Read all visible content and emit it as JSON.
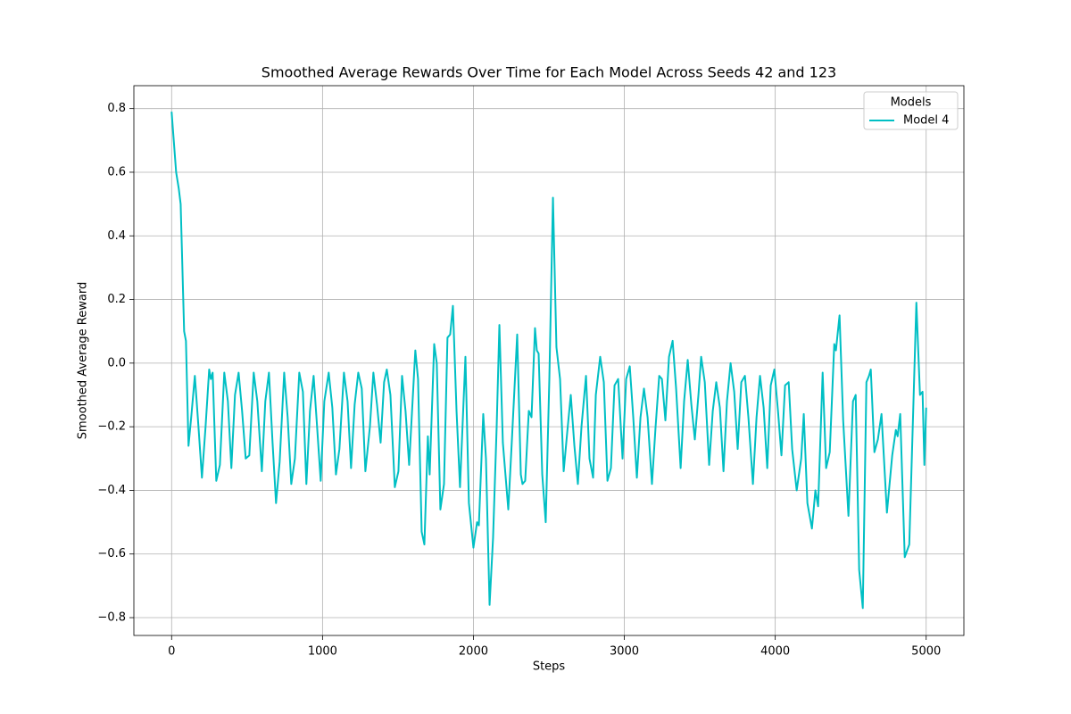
{
  "chart_data": {
    "type": "line",
    "title": "Smoothed Average Rewards Over Time for Each Model Across Seeds 42 and 123",
    "x_label": "Steps",
    "y_label": "Smoothed Average Reward",
    "legend_title": "Models",
    "legend_position": "upper right",
    "grid": true,
    "xlim": [
      -250,
      5250
    ],
    "ylim": [
      -0.856,
      0.872
    ],
    "xticks": [
      0,
      1000,
      2000,
      3000,
      4000,
      5000
    ],
    "yticks": [
      {
        "value": -0.8,
        "label": "−0.8"
      },
      {
        "value": -0.6,
        "label": "−0.6"
      },
      {
        "value": -0.4,
        "label": "−0.4"
      },
      {
        "value": -0.2,
        "label": "−0.2"
      },
      {
        "value": 0,
        "label": "0.0"
      },
      0.2,
      0.4,
      0.6,
      0.8
    ],
    "x": [
      0,
      30,
      47,
      60,
      83,
      95,
      112,
      130,
      154,
      178,
      201,
      225,
      249,
      260,
      272,
      296,
      320,
      349,
      373,
      396,
      420,
      444,
      467,
      491,
      515,
      544,
      568,
      598,
      621,
      645,
      669,
      692,
      716,
      746,
      769,
      793,
      817,
      846,
      870,
      893,
      917,
      941,
      964,
      988,
      1012,
      1041,
      1065,
      1089,
      1112,
      1142,
      1166,
      1189,
      1213,
      1237,
      1260,
      1284,
      1314,
      1337,
      1361,
      1385,
      1408,
      1426,
      1450,
      1479,
      1503,
      1527,
      1550,
      1574,
      1615,
      1633,
      1657,
      1675,
      1698,
      1710,
      1740,
      1757,
      1781,
      1805,
      1828,
      1846,
      1864,
      1888,
      1911,
      1947,
      1970,
      2000,
      2024,
      2036,
      2065,
      2083,
      2107,
      2130,
      2154,
      2172,
      2195,
      2231,
      2254,
      2290,
      2314,
      2325,
      2343,
      2367,
      2385,
      2408,
      2420,
      2432,
      2456,
      2479,
      2503,
      2527,
      2550,
      2574,
      2598,
      2621,
      2645,
      2669,
      2692,
      2716,
      2746,
      2769,
      2793,
      2811,
      2840,
      2864,
      2888,
      2911,
      2935,
      2959,
      2988,
      3012,
      3036,
      3059,
      3083,
      3107,
      3130,
      3154,
      3183,
      3207,
      3231,
      3249,
      3272,
      3296,
      3320,
      3343,
      3373,
      3396,
      3420,
      3444,
      3467,
      3491,
      3509,
      3533,
      3562,
      3586,
      3609,
      3633,
      3657,
      3680,
      3704,
      3728,
      3751,
      3775,
      3799,
      3822,
      3852,
      3876,
      3899,
      3923,
      3947,
      3970,
      3994,
      4018,
      4041,
      4065,
      4089,
      4112,
      4142,
      4172,
      4189,
      4213,
      4243,
      4266,
      4284,
      4314,
      4337,
      4361,
      4391,
      4402,
      4426,
      4450,
      4485,
      4515,
      4533,
      4556,
      4580,
      4604,
      4621,
      4633,
      4657,
      4680,
      4704,
      4740,
      4775,
      4799,
      4811,
      4828,
      4858,
      4888,
      4911,
      4935,
      4959,
      4976,
      4988,
      5000
    ],
    "series": [
      {
        "name": "Model 4",
        "color": "#00bfc4",
        "values": [
          0.79,
          0.6,
          0.55,
          0.5,
          0.1,
          0.07,
          -0.26,
          -0.17,
          -0.04,
          -0.2,
          -0.36,
          -0.2,
          -0.02,
          -0.05,
          -0.03,
          -0.37,
          -0.32,
          -0.03,
          -0.12,
          -0.33,
          -0.1,
          -0.03,
          -0.15,
          -0.3,
          -0.29,
          -0.03,
          -0.12,
          -0.34,
          -0.12,
          -0.03,
          -0.25,
          -0.44,
          -0.31,
          -0.03,
          -0.17,
          -0.38,
          -0.3,
          -0.03,
          -0.09,
          -0.38,
          -0.15,
          -0.04,
          -0.2,
          -0.37,
          -0.12,
          -0.03,
          -0.14,
          -0.35,
          -0.27,
          -0.03,
          -0.12,
          -0.33,
          -0.13,
          -0.03,
          -0.08,
          -0.34,
          -0.2,
          -0.03,
          -0.13,
          -0.25,
          -0.06,
          -0.02,
          -0.1,
          -0.39,
          -0.34,
          -0.04,
          -0.15,
          -0.32,
          0.04,
          -0.05,
          -0.53,
          -0.57,
          -0.23,
          -0.35,
          0.06,
          0.0,
          -0.46,
          -0.38,
          0.08,
          0.09,
          0.18,
          -0.15,
          -0.39,
          0.02,
          -0.44,
          -0.58,
          -0.5,
          -0.51,
          -0.16,
          -0.3,
          -0.76,
          -0.55,
          -0.2,
          0.12,
          -0.25,
          -0.46,
          -0.25,
          0.09,
          -0.35,
          -0.38,
          -0.37,
          -0.15,
          -0.17,
          0.11,
          0.04,
          0.03,
          -0.35,
          -0.5,
          -0.05,
          0.52,
          0.05,
          -0.05,
          -0.34,
          -0.22,
          -0.1,
          -0.26,
          -0.38,
          -0.2,
          -0.04,
          -0.3,
          -0.36,
          -0.1,
          0.02,
          -0.06,
          -0.37,
          -0.33,
          -0.07,
          -0.05,
          -0.3,
          -0.05,
          -0.01,
          -0.17,
          -0.36,
          -0.17,
          -0.08,
          -0.17,
          -0.38,
          -0.2,
          -0.04,
          -0.05,
          -0.18,
          0.02,
          0.07,
          -0.08,
          -0.33,
          -0.12,
          0.01,
          -0.13,
          -0.24,
          -0.1,
          0.02,
          -0.06,
          -0.32,
          -0.15,
          -0.06,
          -0.14,
          -0.34,
          -0.12,
          0.0,
          -0.09,
          -0.27,
          -0.06,
          -0.04,
          -0.17,
          -0.38,
          -0.17,
          -0.04,
          -0.14,
          -0.33,
          -0.07,
          -0.02,
          -0.15,
          -0.29,
          -0.07,
          -0.06,
          -0.27,
          -0.4,
          -0.3,
          -0.16,
          -0.44,
          -0.52,
          -0.4,
          -0.45,
          -0.03,
          -0.33,
          -0.28,
          0.06,
          0.04,
          0.15,
          -0.18,
          -0.48,
          -0.12,
          -0.1,
          -0.65,
          -0.77,
          -0.06,
          -0.04,
          -0.02,
          -0.28,
          -0.24,
          -0.16,
          -0.47,
          -0.29,
          -0.21,
          -0.23,
          -0.16,
          -0.61,
          -0.57,
          -0.2,
          0.19,
          -0.1,
          -0.09,
          -0.32,
          -0.14
        ]
      }
    ]
  }
}
